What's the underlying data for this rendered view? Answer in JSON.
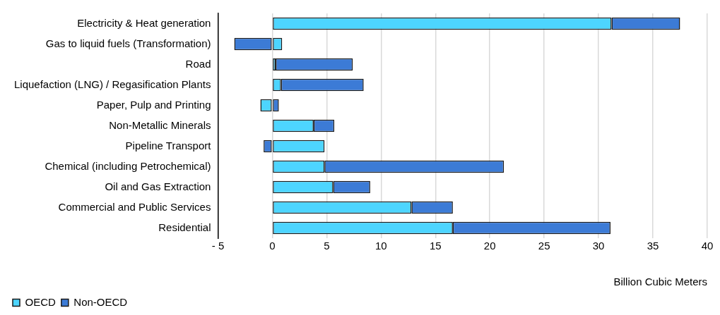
{
  "chart_data": {
    "type": "bar",
    "orientation": "horizontal",
    "stacked": true,
    "categories": [
      "Electricity & Heat generation",
      "Gas to liquid fuels (Transformation)",
      "Road",
      "Liquefaction (LNG) / Regasification Plants",
      "Paper, Pulp and Printing",
      "Non-Metallic Minerals",
      "Pipeline Transport",
      "Chemical (including Petrochemical)",
      "Oil and Gas Extraction",
      "Commercial and Public Services",
      "Residential"
    ],
    "series": [
      {
        "name": "OECD",
        "color": "#4dd5ff",
        "values": [
          31.2,
          0.9,
          0.3,
          0.8,
          -1.1,
          3.8,
          4.8,
          4.8,
          5.6,
          12.8,
          16.6
        ]
      },
      {
        "name": "Non-OECD",
        "color": "#3c7bd6",
        "values": [
          6.3,
          -3.5,
          7.1,
          7.6,
          0.6,
          1.9,
          -0.8,
          16.5,
          3.4,
          3.8,
          14.5
        ]
      }
    ],
    "xlim": [
      -5,
      40
    ],
    "xticks": [
      {
        "value": -5,
        "label": "- 5"
      },
      0,
      5,
      10,
      15,
      20,
      25,
      30,
      35,
      40
    ],
    "xlabel": "Billion Cubic Meters",
    "grid": "x",
    "legend": "bottom left"
  }
}
